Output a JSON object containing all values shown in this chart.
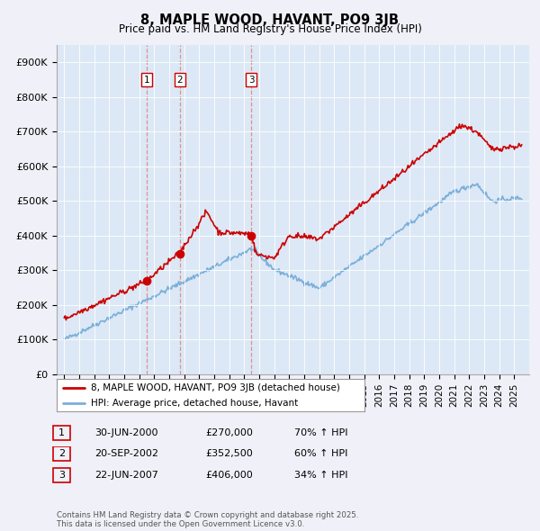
{
  "title": "8, MAPLE WOOD, HAVANT, PO9 3JB",
  "subtitle": "Price paid vs. HM Land Registry's House Price Index (HPI)",
  "legend_label_red": "8, MAPLE WOOD, HAVANT, PO9 3JB (detached house)",
  "legend_label_blue": "HPI: Average price, detached house, Havant",
  "footer": "Contains HM Land Registry data © Crown copyright and database right 2025.\nThis data is licensed under the Open Government Licence v3.0.",
  "sale_events": [
    {
      "num": 1,
      "date": "30-JUN-2000",
      "price": "£270,000",
      "hpi_change": "70% ↑ HPI",
      "x_year": 2000.5
    },
    {
      "num": 2,
      "date": "20-SEP-2002",
      "price": "£352,500",
      "hpi_change": "60% ↑ HPI",
      "x_year": 2002.72
    },
    {
      "num": 3,
      "date": "22-JUN-2007",
      "price": "£406,000",
      "hpi_change": "34% ↑ HPI",
      "x_year": 2007.47
    }
  ],
  "ylim": [
    0,
    950000
  ],
  "xlim": [
    1994.5,
    2026
  ],
  "yticks": [
    0,
    100000,
    200000,
    300000,
    400000,
    500000,
    600000,
    700000,
    800000,
    900000
  ],
  "ytick_labels": [
    "£0",
    "£100K",
    "£200K",
    "£300K",
    "£400K",
    "£500K",
    "£600K",
    "£700K",
    "£800K",
    "£900K"
  ],
  "red_color": "#cc0000",
  "blue_color": "#7aafda",
  "vline_color": "#dd8888",
  "background_color": "#f0f0f8",
  "plot_bg_color": "#dce8f5"
}
